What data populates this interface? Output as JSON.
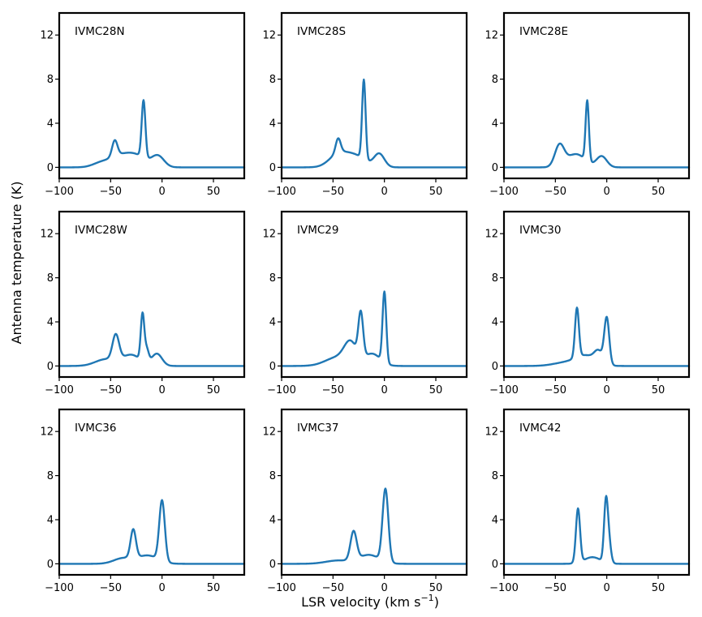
{
  "chart_data": {
    "type": "line",
    "xlabel_main": "LSR velocity (km s",
    "xlabel_sup": "−1",
    "xlabel_close": ")",
    "ylabel": "Antenna temperature (K)",
    "xlim": [
      -100,
      80
    ],
    "ylim": [
      -1,
      14
    ],
    "xticks": [
      -100,
      -50,
      0,
      50
    ],
    "xtick_labels": [
      "−100",
      "−50",
      "0",
      "50"
    ],
    "yticks": [
      0,
      4,
      8,
      12
    ],
    "ytick_labels": [
      "0",
      "4",
      "8",
      "12"
    ],
    "line_color": "#1f77b4",
    "panels": [
      {
        "name": "IVMC28N",
        "peaks": [
          {
            "v": -18,
            "a": 5.2,
            "w": 1.8
          },
          {
            "v": -46,
            "a": 1.45,
            "w": 2.6
          },
          {
            "v": -42,
            "a": 0.9,
            "w": 10
          },
          {
            "v": -25,
            "a": 1.0,
            "w": 10
          },
          {
            "v": -4,
            "a": 1.0,
            "w": 6
          },
          {
            "v": -60,
            "a": 0.35,
            "w": 8
          }
        ]
      },
      {
        "name": "IVMC28S",
        "peaks": [
          {
            "v": -20,
            "a": 7.2,
            "w": 1.7
          },
          {
            "v": -45,
            "a": 1.3,
            "w": 2.4
          },
          {
            "v": -45,
            "a": 1.1,
            "w": 9
          },
          {
            "v": -28,
            "a": 1.0,
            "w": 10
          },
          {
            "v": -5,
            "a": 1.2,
            "w": 5
          }
        ]
      },
      {
        "name": "IVMC28E",
        "peaks": [
          {
            "v": -19,
            "a": 5.5,
            "w": 1.6
          },
          {
            "v": -46,
            "a": 1.9,
            "w": 4.5
          },
          {
            "v": -30,
            "a": 1.2,
            "w": 9
          },
          {
            "v": -5,
            "a": 1.0,
            "w": 5
          }
        ]
      },
      {
        "name": "IVMC28W",
        "peaks": [
          {
            "v": -19,
            "a": 4.2,
            "w": 1.7
          },
          {
            "v": -15,
            "a": 1.2,
            "w": 2
          },
          {
            "v": -45,
            "a": 2.3,
            "w": 3.2
          },
          {
            "v": -30,
            "a": 1.0,
            "w": 9
          },
          {
            "v": -5,
            "a": 1.1,
            "w": 5
          },
          {
            "v": -55,
            "a": 0.6,
            "w": 10
          }
        ]
      },
      {
        "name": "IVMC29",
        "peaks": [
          {
            "v": -23,
            "a": 4.0,
            "w": 2.3
          },
          {
            "v": 0,
            "a": 6.4,
            "w": 1.8
          },
          {
            "v": -33,
            "a": 1.8,
            "w": 6
          },
          {
            "v": -12,
            "a": 1.1,
            "w": 8
          },
          {
            "v": -45,
            "a": 0.8,
            "w": 12
          }
        ]
      },
      {
        "name": "IVMC30",
        "peaks": [
          {
            "v": -29,
            "a": 4.5,
            "w": 1.9
          },
          {
            "v": 0,
            "a": 4.2,
            "w": 2.4
          },
          {
            "v": -8,
            "a": 1.0,
            "w": 4
          },
          {
            "v": -20,
            "a": 0.9,
            "w": 10
          },
          {
            "v": -40,
            "a": 0.3,
            "w": 12
          }
        ]
      },
      {
        "name": "IVMC36",
        "peaks": [
          {
            "v": -28,
            "a": 2.6,
            "w": 2.6
          },
          {
            "v": 0,
            "a": 5.5,
            "w": 2.7
          },
          {
            "v": -14,
            "a": 0.75,
            "w": 10
          },
          {
            "v": -38,
            "a": 0.5,
            "w": 9
          }
        ]
      },
      {
        "name": "IVMC37",
        "peaks": [
          {
            "v": -30,
            "a": 2.6,
            "w": 3.0
          },
          {
            "v": 1,
            "a": 6.6,
            "w": 2.8
          },
          {
            "v": -15,
            "a": 0.8,
            "w": 10
          },
          {
            "v": -45,
            "a": 0.3,
            "w": 12
          }
        ]
      },
      {
        "name": "IVMC42",
        "peaks": [
          {
            "v": -28,
            "a": 4.9,
            "w": 2.0
          },
          {
            "v": -1,
            "a": 4.6,
            "w": 1.8
          },
          {
            "v": 1.5,
            "a": 2.4,
            "w": 2.2
          },
          {
            "v": -14,
            "a": 0.6,
            "w": 8
          }
        ]
      }
    ]
  }
}
